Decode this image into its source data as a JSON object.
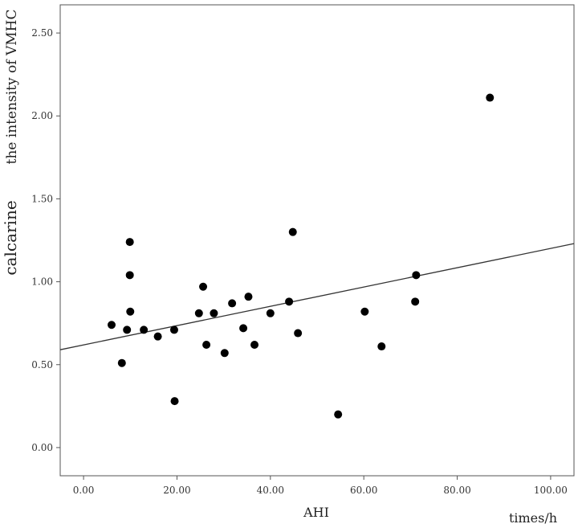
{
  "chart_data": {
    "type": "scatter",
    "xlabel": "AHI",
    "xunit": "times/h",
    "ylabel_main": "calcarine",
    "ylabel_secondary": "the intensity of VMHC",
    "xlim": [
      -5,
      105
    ],
    "ylim": [
      -0.17,
      2.67
    ],
    "x_ticks": [
      "0.00",
      "20.00",
      "40.00",
      "60.00",
      "80.00",
      "100.00"
    ],
    "y_ticks": [
      "0.00",
      "0.50",
      "1.00",
      "1.50",
      "2.00",
      "2.50"
    ],
    "grid": false,
    "legend": "none",
    "marker_color": "#000000",
    "line_color": "#333333",
    "points": [
      {
        "x": 6.0,
        "y": 0.74
      },
      {
        "x": 8.2,
        "y": 0.51
      },
      {
        "x": 9.3,
        "y": 0.71
      },
      {
        "x": 9.9,
        "y": 1.24
      },
      {
        "x": 9.9,
        "y": 1.04
      },
      {
        "x": 10.0,
        "y": 0.82
      },
      {
        "x": 12.9,
        "y": 0.71
      },
      {
        "x": 15.9,
        "y": 0.67
      },
      {
        "x": 19.4,
        "y": 0.71
      },
      {
        "x": 19.5,
        "y": 0.28
      },
      {
        "x": 24.7,
        "y": 0.81
      },
      {
        "x": 25.6,
        "y": 0.97
      },
      {
        "x": 26.3,
        "y": 0.62
      },
      {
        "x": 27.9,
        "y": 0.81
      },
      {
        "x": 30.2,
        "y": 0.57
      },
      {
        "x": 31.8,
        "y": 0.87
      },
      {
        "x": 34.2,
        "y": 0.72
      },
      {
        "x": 35.3,
        "y": 0.91
      },
      {
        "x": 36.6,
        "y": 0.62
      },
      {
        "x": 40.0,
        "y": 0.81
      },
      {
        "x": 44.0,
        "y": 0.88
      },
      {
        "x": 44.8,
        "y": 1.3
      },
      {
        "x": 45.9,
        "y": 0.69
      },
      {
        "x": 54.5,
        "y": 0.2
      },
      {
        "x": 60.2,
        "y": 0.82
      },
      {
        "x": 63.8,
        "y": 0.61
      },
      {
        "x": 71.0,
        "y": 0.88
      },
      {
        "x": 71.2,
        "y": 1.04
      },
      {
        "x": 87.0,
        "y": 2.11
      }
    ],
    "fit_line": {
      "x": [
        -5,
        105
      ],
      "y": [
        0.59,
        1.23
      ]
    }
  }
}
